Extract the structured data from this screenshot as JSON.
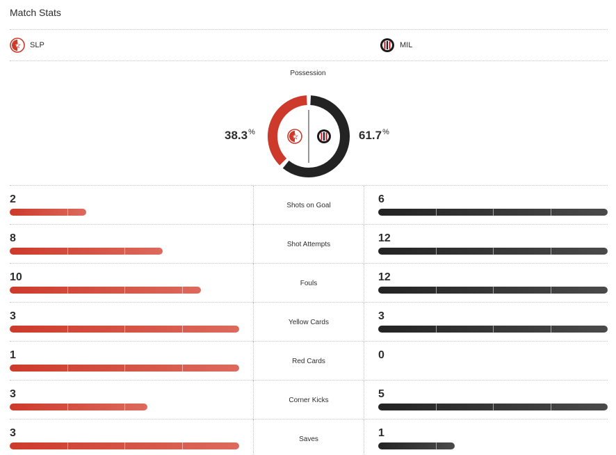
{
  "header": {
    "title": "Match Stats"
  },
  "teams": {
    "home": {
      "abbr": "SLP",
      "color": "#cd3a2b",
      "logo_icon": "slavia-crest-icon"
    },
    "away": {
      "abbr": "MIL",
      "color": "#232323",
      "logo_icon": "milan-crest-icon"
    }
  },
  "possession": {
    "label": "Possession",
    "home": 38.3,
    "away": 61.7,
    "home_text": "38.3",
    "away_text": "61.7",
    "unit": "%"
  },
  "stats": [
    {
      "label": "Shots on Goal",
      "home": "2",
      "away": "6",
      "home_frac": 0.333,
      "away_frac": 1.0
    },
    {
      "label": "Shot Attempts",
      "home": "8",
      "away": "12",
      "home_frac": 0.667,
      "away_frac": 1.0
    },
    {
      "label": "Fouls",
      "home": "10",
      "away": "12",
      "home_frac": 0.833,
      "away_frac": 1.0
    },
    {
      "label": "Yellow Cards",
      "home": "3",
      "away": "3",
      "home_frac": 1.0,
      "away_frac": 1.0
    },
    {
      "label": "Red Cards",
      "home": "1",
      "away": "0",
      "home_frac": 1.0,
      "away_frac": 0.0
    },
    {
      "label": "Corner Kicks",
      "home": "3",
      "away": "5",
      "home_frac": 0.6,
      "away_frac": 1.0
    },
    {
      "label": "Saves",
      "home": "3",
      "away": "1",
      "home_frac": 1.0,
      "away_frac": 0.333
    }
  ]
}
